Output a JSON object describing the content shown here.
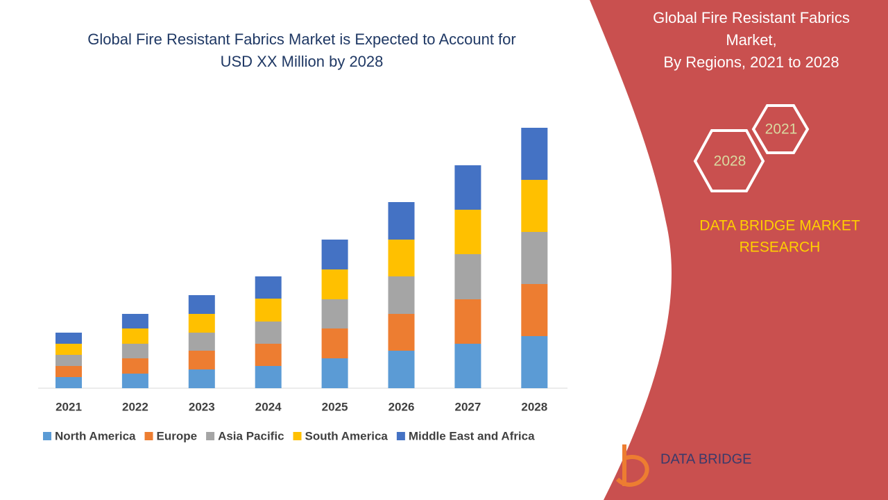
{
  "chart_data": {
    "type": "stacked-bar",
    "title": [
      "Global Fire Resistant Fabrics Market is Expected to Account for",
      "USD XX Million by 2028"
    ],
    "categories": [
      "2021",
      "2022",
      "2023",
      "2024",
      "2025",
      "2026",
      "2027",
      "2028"
    ],
    "series": [
      {
        "name": "North America",
        "color": "#5b9bd5",
        "values": [
          16,
          21,
          27,
          32,
          43,
          54,
          64,
          75
        ]
      },
      {
        "name": "Europe",
        "color": "#ed7d31",
        "values": [
          16,
          22,
          27,
          32,
          43,
          53,
          64,
          75
        ]
      },
      {
        "name": "Asia Pacific",
        "color": "#a5a5a5",
        "values": [
          16,
          21,
          26,
          32,
          42,
          54,
          65,
          75
        ]
      },
      {
        "name": "South America",
        "color": "#ffc000",
        "values": [
          16,
          22,
          27,
          33,
          43,
          53,
          64,
          75
        ]
      },
      {
        "name": "Middle East and Africa",
        "color": "#4472c4",
        "values": [
          16,
          21,
          27,
          32,
          43,
          54,
          64,
          75
        ]
      }
    ]
  },
  "panel": {
    "title": [
      "Global Fire Resistant Fabrics",
      "Market,",
      "By Regions, 2021 to 2028"
    ],
    "hex_labels": [
      "2021",
      "2028"
    ],
    "brand": [
      "DATA BRIDGE MARKET",
      "RESEARCH"
    ],
    "logo": "DATA BRIDGE"
  }
}
